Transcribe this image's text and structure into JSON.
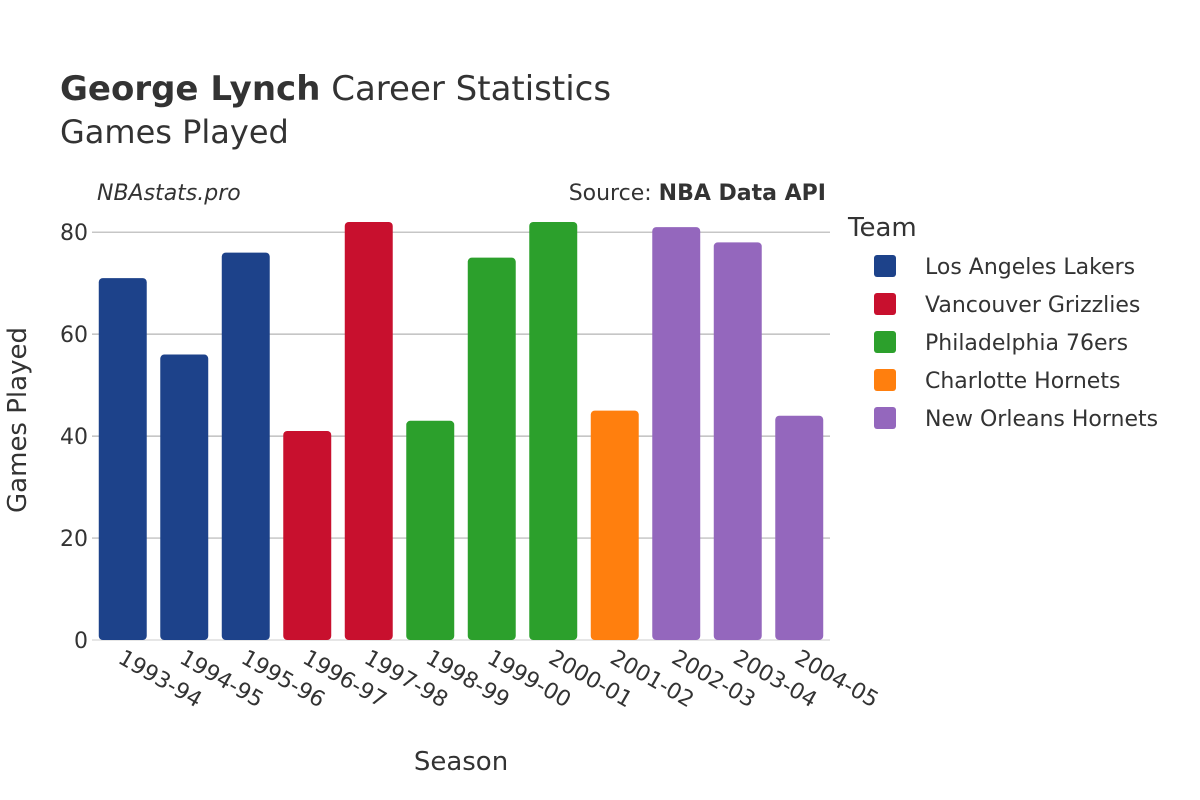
{
  "header": {
    "title_bold": "George Lynch",
    "title_rest": " Career Statistics",
    "subtitle": "Games Played",
    "watermark": "NBAstats.pro",
    "source_prefix": "Source: ",
    "source_bold": "NBA Data API"
  },
  "chart_data": {
    "type": "bar",
    "xlabel": "Season",
    "ylabel": "Games Played",
    "ylim": [
      0,
      82
    ],
    "yticks": [
      0,
      20,
      40,
      60,
      80
    ],
    "grid": true,
    "legend_position": "right",
    "legend_title": "Team",
    "teams": [
      {
        "name": "Los Angeles Lakers",
        "color": "#1d428a"
      },
      {
        "name": "Vancouver Grizzlies",
        "color": "#c8102e"
      },
      {
        "name": "Philadelphia 76ers",
        "color": "#2ca02c"
      },
      {
        "name": "Charlotte Hornets",
        "color": "#ff7f0e"
      },
      {
        "name": "New Orleans Hornets",
        "color": "#9467bd"
      }
    ],
    "categories": [
      "1993-94",
      "1994-95",
      "1995-96",
      "1996-97",
      "1997-98",
      "1998-99",
      "1999-00",
      "2000-01",
      "2001-02",
      "2002-03",
      "2003-04",
      "2004-05"
    ],
    "values": [
      71,
      56,
      76,
      41,
      82,
      43,
      75,
      82,
      45,
      81,
      78,
      44
    ],
    "bar_team": [
      0,
      0,
      0,
      1,
      1,
      2,
      2,
      2,
      3,
      4,
      4,
      4
    ]
  }
}
